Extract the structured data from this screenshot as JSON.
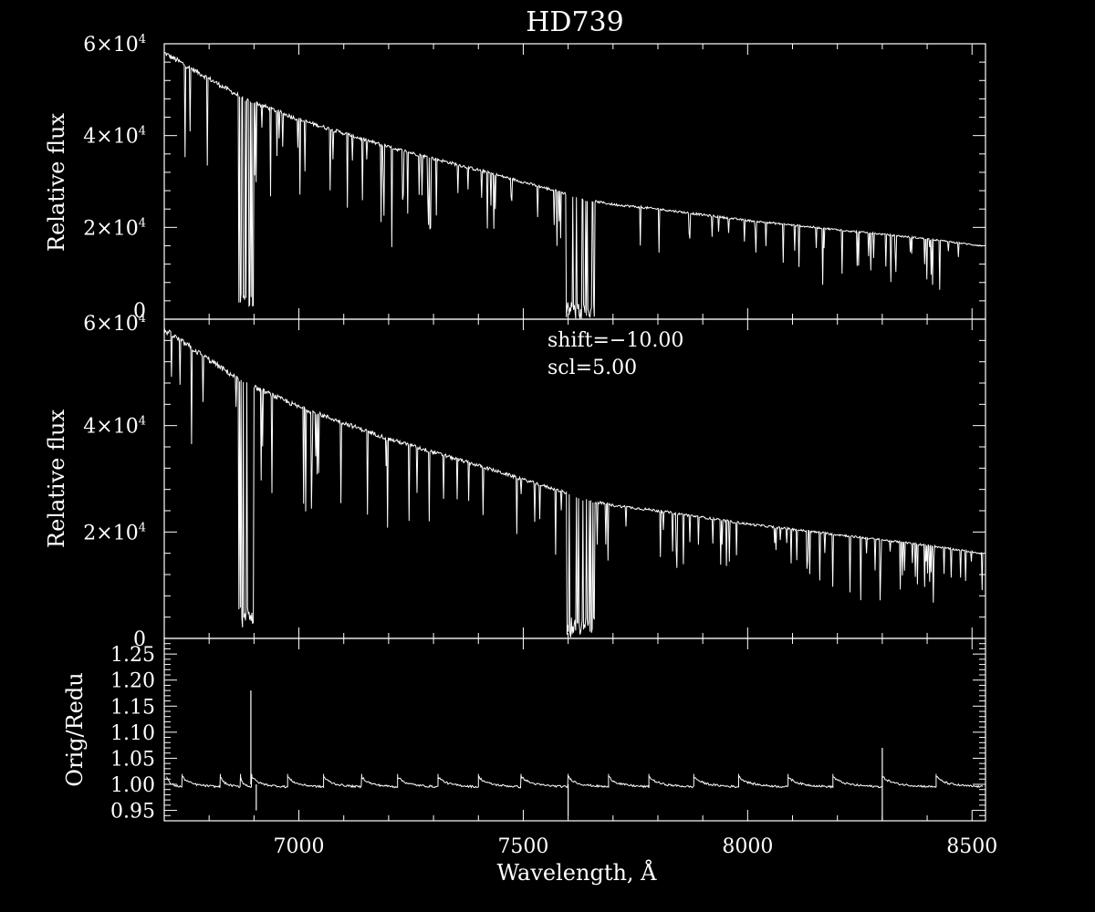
{
  "title": "HD739",
  "annotation": {
    "shift": "shift=−10.00",
    "scl": "scl=5.00"
  },
  "colors": {
    "background": "#000000",
    "foreground": "#ffffff"
  },
  "chart_data": [
    {
      "type": "line",
      "panel": "top",
      "ylabel": "Relative flux",
      "xlim": [
        6700,
        8530
      ],
      "ylim": [
        0,
        60000
      ],
      "yticks": [
        {
          "mant": "0",
          "exp": ""
        },
        {
          "mant": "2×10",
          "exp": "4"
        },
        {
          "mant": "4×10",
          "exp": "4"
        },
        {
          "mant": "6×10",
          "exp": "4"
        }
      ],
      "ytick_values": [
        0,
        20000,
        40000,
        60000
      ],
      "continuum": {
        "x": [
          6700,
          6860,
          6880,
          7000,
          7200,
          7400,
          7590,
          7610,
          7700,
          7800,
          8000,
          8200,
          8400,
          8520
        ],
        "y": [
          58000,
          49000,
          48000,
          43500,
          37500,
          32500,
          27500,
          26500,
          25000,
          24000,
          21500,
          19500,
          17500,
          16000
        ]
      },
      "absorption_bands": [
        {
          "from": 6865,
          "to": 6900,
          "min": 2000
        },
        {
          "from": 7595,
          "to": 7660,
          "min": 0
        }
      ]
    },
    {
      "type": "line",
      "panel": "middle",
      "ylabel": "Relative flux",
      "xlim": [
        6700,
        8530
      ],
      "ylim": [
        0,
        60000
      ],
      "yticks": [
        {
          "mant": "0",
          "exp": ""
        },
        {
          "mant": "2×10",
          "exp": "4"
        },
        {
          "mant": "4×10",
          "exp": "4"
        },
        {
          "mant": "6×10",
          "exp": "4"
        }
      ],
      "ytick_values": [
        0,
        20000,
        40000,
        60000
      ],
      "continuum": {
        "x": [
          6700,
          6860,
          6880,
          7000,
          7200,
          7400,
          7590,
          7610,
          7700,
          7800,
          8000,
          8200,
          8400,
          8520
        ],
        "y": [
          58000,
          49000,
          48000,
          43500,
          37500,
          32500,
          27500,
          26500,
          25000,
          24000,
          21500,
          19500,
          17500,
          16000
        ]
      },
      "absorption_bands": [
        {
          "from": 6865,
          "to": 6900,
          "min": 2000
        },
        {
          "from": 7595,
          "to": 7660,
          "min": 0
        }
      ]
    },
    {
      "type": "line",
      "panel": "bottom",
      "ylabel": "Orig/Redu",
      "xlabel": "Wavelength, Å",
      "xlim": [
        6700,
        8530
      ],
      "ylim": [
        0.93,
        1.28
      ],
      "yticks": [
        "0.95",
        "1.00",
        "1.05",
        "1.10",
        "1.15",
        "1.20",
        "1.25"
      ],
      "ytick_values": [
        0.95,
        1.0,
        1.05,
        1.1,
        1.15,
        1.2,
        1.25
      ],
      "xticks": [
        "7000",
        "7500",
        "8000",
        "8500"
      ],
      "xtick_values": [
        7000,
        7500,
        8000,
        8500
      ],
      "order_edges": [
        6705,
        6740,
        6825,
        6870,
        6895,
        6975,
        7055,
        7140,
        7220,
        7310,
        7400,
        7495,
        7600,
        7690,
        7780,
        7880,
        7980,
        8090,
        8190,
        8300,
        8420
      ],
      "spikes": [
        {
          "x": 6893,
          "y": 1.18
        },
        {
          "x": 6905,
          "y": 0.95
        },
        {
          "x": 7600,
          "y": 0.94
        },
        {
          "x": 8300,
          "y": 1.07
        },
        {
          "x": 8300,
          "y": 0.93
        }
      ]
    }
  ]
}
